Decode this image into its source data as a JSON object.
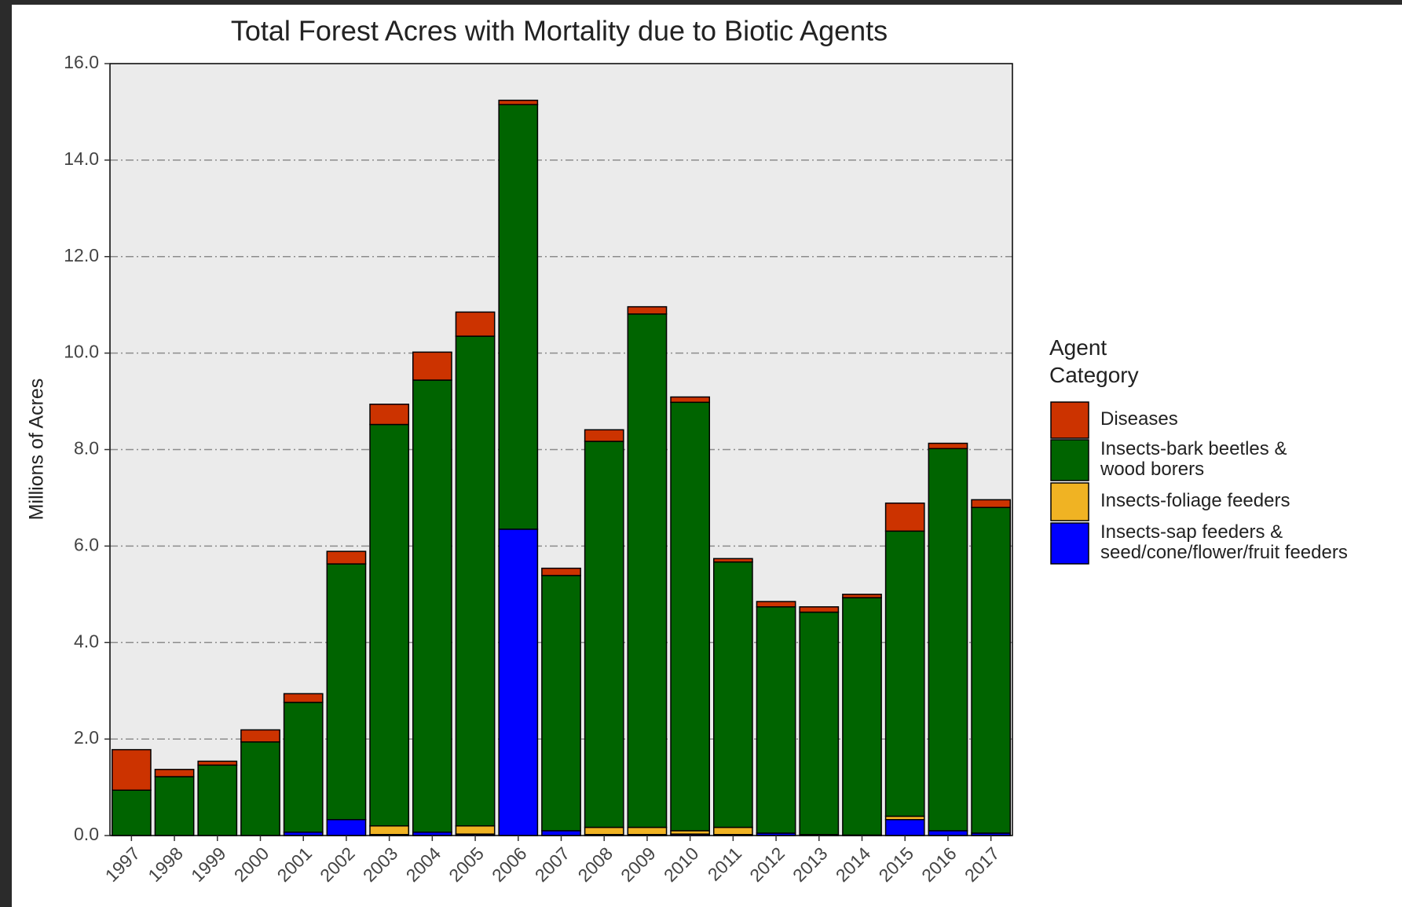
{
  "chart_data": {
    "type": "stacked_bar",
    "title": "Total Forest Acres with Mortality due to Biotic Agents",
    "y_label": "Millions of Acres",
    "legend_title": "Agent Category",
    "categories": [
      "1997",
      "1998",
      "1999",
      "2000",
      "2001",
      "2002",
      "2003",
      "2004",
      "2005",
      "2006",
      "2007",
      "2008",
      "2009",
      "2010",
      "2011",
      "2012",
      "2013",
      "2014",
      "2015",
      "2016",
      "2017"
    ],
    "series": [
      {
        "name": "Insects-sap feeders & seed/cone/flower/fruit feeders",
        "color": "#0000ff",
        "values": [
          0,
          0,
          0,
          0,
          0.07,
          0.33,
          0.02,
          0.07,
          0.03,
          6.35,
          0.1,
          0.02,
          0.02,
          0.03,
          0.02,
          0.05,
          0.02,
          0.01,
          0.33,
          0.1,
          0.05
        ]
      },
      {
        "name": "Insects-foliage feeders",
        "color": "#f0b323",
        "values": [
          0,
          0,
          0,
          0,
          0,
          0,
          0.18,
          0,
          0.17,
          0,
          0,
          0.15,
          0.15,
          0.07,
          0.15,
          0,
          0,
          0,
          0.07,
          0,
          0
        ]
      },
      {
        "name": "Insects-bark beetles & wood borers",
        "color": "#006400",
        "values": [
          0.94,
          1.22,
          1.46,
          1.94,
          2.69,
          5.3,
          8.32,
          9.37,
          10.15,
          8.8,
          5.29,
          8.0,
          10.64,
          8.88,
          5.5,
          4.69,
          4.61,
          4.92,
          5.91,
          7.92,
          6.75
        ]
      },
      {
        "name": "Diseases",
        "color": "#cc3300",
        "values": [
          0.84,
          0.15,
          0.08,
          0.25,
          0.18,
          0.26,
          0.42,
          0.58,
          0.5,
          0.09,
          0.15,
          0.24,
          0.15,
          0.11,
          0.07,
          0.11,
          0.11,
          0.07,
          0.58,
          0.11,
          0.16
        ]
      }
    ],
    "ylim": [
      0,
      16
    ],
    "yticks": [
      {
        "value": 0,
        "label": "0.0"
      },
      {
        "value": 2,
        "label": "2.0"
      },
      {
        "value": 4,
        "label": "4.0"
      },
      {
        "value": 6,
        "label": "6.0"
      },
      {
        "value": 8,
        "label": "8.0"
      },
      {
        "value": 10,
        "label": "10.0"
      },
      {
        "value": 12,
        "label": "12.0"
      },
      {
        "value": 14,
        "label": "14.0"
      },
      {
        "value": 16,
        "label": "16.0"
      }
    ],
    "grid": true
  }
}
